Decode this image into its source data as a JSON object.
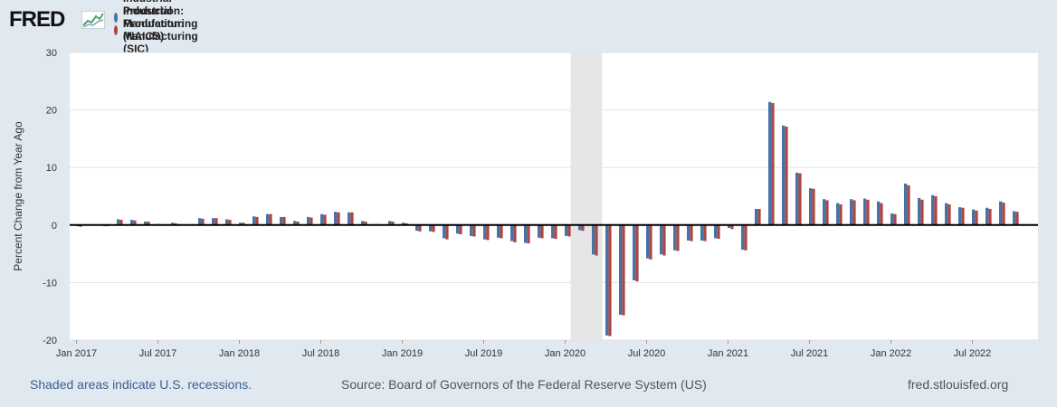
{
  "header": {
    "logo_text": "FRED",
    "legend": [
      {
        "label": "Industrial Production: Manufacturing (NAICS)",
        "color": "#4572a7"
      },
      {
        "label": "Industrial Production: Manufacturing (SIC)",
        "color": "#aa4643"
      }
    ]
  },
  "chart_data": {
    "type": "bar",
    "ylabel": "Percent Change from Year Ago",
    "ylim": [
      -20,
      30
    ],
    "yticks": [
      -20,
      -10,
      0,
      10,
      20,
      30
    ],
    "x_tick_labels": [
      "Jan 2017",
      "Jul 2017",
      "Jan 2018",
      "Jul 2018",
      "Jan 2019",
      "Jul 2019",
      "Jan 2020",
      "Jul 2020",
      "Jan 2021",
      "Jul 2021",
      "Jan 2022",
      "Jul 2022"
    ],
    "x_tick_month_index": [
      0,
      6,
      12,
      18,
      24,
      30,
      36,
      42,
      48,
      54,
      60,
      66
    ],
    "recession": {
      "start_month_index": 37,
      "end_month_index": 39
    },
    "months": [
      "2017-01",
      "2017-02",
      "2017-03",
      "2017-04",
      "2017-05",
      "2017-06",
      "2017-07",
      "2017-08",
      "2017-09",
      "2017-10",
      "2017-11",
      "2017-12",
      "2018-01",
      "2018-02",
      "2018-03",
      "2018-04",
      "2018-05",
      "2018-06",
      "2018-07",
      "2018-08",
      "2018-09",
      "2018-10",
      "2018-11",
      "2018-12",
      "2019-01",
      "2019-02",
      "2019-03",
      "2019-04",
      "2019-05",
      "2019-06",
      "2019-07",
      "2019-08",
      "2019-09",
      "2019-10",
      "2019-11",
      "2019-12",
      "2020-01",
      "2020-02",
      "2020-03",
      "2020-04",
      "2020-05",
      "2020-06",
      "2020-07",
      "2020-08",
      "2020-09",
      "2020-10",
      "2020-11",
      "2020-12",
      "2021-01",
      "2021-02",
      "2021-03",
      "2021-04",
      "2021-05",
      "2021-06",
      "2021-07",
      "2021-08",
      "2021-09",
      "2021-10",
      "2021-11",
      "2021-12",
      "2022-01",
      "2022-02",
      "2022-03",
      "2022-04",
      "2022-05",
      "2022-06",
      "2022-07",
      "2022-08",
      "2022-09",
      "2022-10"
    ],
    "series": [
      {
        "name": "Industrial Production: Manufacturing (NAICS)",
        "color": "#4572a7",
        "values": [
          -0.2,
          -0.1,
          -0.2,
          1.0,
          0.9,
          0.6,
          0.2,
          0.4,
          0.1,
          1.2,
          1.2,
          1.0,
          0.4,
          1.5,
          1.9,
          1.4,
          0.7,
          1.4,
          1.9,
          2.3,
          2.2,
          0.7,
          0.2,
          0.7,
          0.4,
          -1.0,
          -1.1,
          -2.3,
          -1.5,
          -1.9,
          -2.5,
          -2.2,
          -2.8,
          -3.1,
          -2.2,
          -2.3,
          -1.9,
          -0.9,
          -5.1,
          -19.2,
          -15.6,
          -9.6,
          -5.8,
          -5.1,
          -4.4,
          -2.7,
          -2.7,
          -2.3,
          -0.5,
          -4.3,
          2.8,
          21.4,
          17.3,
          9.1,
          6.4,
          4.5,
          3.8,
          4.5,
          4.6,
          4.1,
          2.0,
          7.2,
          4.7,
          5.2,
          3.8,
          3.1,
          2.7,
          3.0,
          4.1,
          2.4
        ]
      },
      {
        "name": "Industrial Production: Manufacturing (SIC)",
        "color": "#aa4643",
        "values": [
          -0.3,
          0.0,
          -0.2,
          0.9,
          0.8,
          0.6,
          0.1,
          0.3,
          0.1,
          1.1,
          1.2,
          0.9,
          0.4,
          1.4,
          1.9,
          1.4,
          0.6,
          1.3,
          1.8,
          2.2,
          2.2,
          0.6,
          0.1,
          0.6,
          0.3,
          -1.1,
          -1.2,
          -2.5,
          -1.6,
          -2.0,
          -2.6,
          -2.3,
          -3.0,
          -3.2,
          -2.3,
          -2.4,
          -2.0,
          -1.0,
          -5.3,
          -19.3,
          -15.7,
          -9.8,
          -6.0,
          -5.3,
          -4.5,
          -2.8,
          -2.8,
          -2.4,
          -0.7,
          -4.4,
          2.8,
          21.2,
          17.1,
          9.0,
          6.3,
          4.3,
          3.6,
          4.3,
          4.4,
          3.8,
          1.9,
          6.9,
          4.4,
          5.0,
          3.6,
          3.0,
          2.5,
          2.8,
          3.9,
          2.3
        ]
      }
    ]
  },
  "footer": {
    "left": "Shaded areas indicate U.S. recessions.",
    "source": "Source: Board of Governors of the Federal Reserve System (US)",
    "site": "fred.stlouisfed.org"
  }
}
